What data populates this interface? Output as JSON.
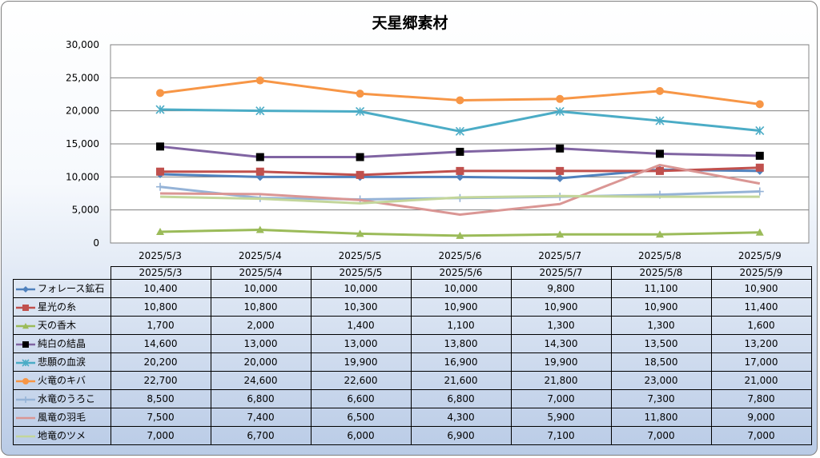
{
  "chart_data": {
    "type": "line",
    "title": "天星郷素材",
    "categories": [
      "2025/5/3",
      "2025/5/4",
      "2025/5/5",
      "2025/5/6",
      "2025/5/7",
      "2025/5/8",
      "2025/5/9"
    ],
    "ylim": [
      0,
      30000
    ],
    "yticks": [
      "0",
      "5,000",
      "10,000",
      "15,000",
      "20,000",
      "25,000",
      "30,000"
    ],
    "grid": true,
    "legend": "data-table",
    "series": [
      {
        "name": "フォレース鉱石",
        "color": "#4f81bd",
        "marker": "diamond",
        "values": [
          10400,
          10000,
          10000,
          10000,
          9800,
          11100,
          10900
        ],
        "labels": [
          "10,400",
          "10,000",
          "10,000",
          "10,000",
          "9,800",
          "11,100",
          "10,900"
        ]
      },
      {
        "name": "星光の糸",
        "color": "#c0504d",
        "marker": "square",
        "values": [
          10800,
          10800,
          10300,
          10900,
          10900,
          10900,
          11400
        ],
        "labels": [
          "10,800",
          "10,800",
          "10,300",
          "10,900",
          "10,900",
          "10,900",
          "11,400"
        ]
      },
      {
        "name": "天の香木",
        "color": "#9bbb59",
        "marker": "triangle",
        "values": [
          1700,
          2000,
          1400,
          1100,
          1300,
          1300,
          1600
        ],
        "labels": [
          "1,700",
          "2,000",
          "1,400",
          "1,100",
          "1,300",
          "1,300",
          "1,600"
        ]
      },
      {
        "name": "純白の結晶",
        "color": "#8064a2",
        "markerColor": "#000000",
        "marker": "square",
        "values": [
          14600,
          13000,
          13000,
          13800,
          14300,
          13500,
          13200
        ],
        "labels": [
          "14,600",
          "13,000",
          "13,000",
          "13,800",
          "14,300",
          "13,500",
          "13,200"
        ]
      },
      {
        "name": "悲願の血涙",
        "color": "#4bacc6",
        "marker": "star",
        "values": [
          20200,
          20000,
          19900,
          16900,
          19900,
          18500,
          17000
        ],
        "labels": [
          "20,200",
          "20,000",
          "19,900",
          "16,900",
          "19,900",
          "18,500",
          "17,000"
        ]
      },
      {
        "name": "火竜のキバ",
        "color": "#f79646",
        "marker": "circle",
        "values": [
          22700,
          24600,
          22600,
          21600,
          21800,
          23000,
          21000
        ],
        "labels": [
          "22,700",
          "24,600",
          "22,600",
          "21,600",
          "21,800",
          "23,000",
          "21,000"
        ]
      },
      {
        "name": "水竜のうろこ",
        "color": "#95b3d7",
        "marker": "plus",
        "values": [
          8500,
          6800,
          6600,
          6800,
          7000,
          7300,
          7800
        ],
        "labels": [
          "8,500",
          "6,800",
          "6,600",
          "6,800",
          "7,000",
          "7,300",
          "7,800"
        ]
      },
      {
        "name": "風竜の羽毛",
        "color": "#da9694",
        "marker": "none",
        "values": [
          7500,
          7400,
          6500,
          4300,
          5900,
          11800,
          9000
        ],
        "labels": [
          "7,500",
          "7,400",
          "6,500",
          "4,300",
          "5,900",
          "11,800",
          "9,000"
        ]
      },
      {
        "name": "地竜のツメ",
        "color": "#c3d69b",
        "marker": "none",
        "values": [
          7000,
          6700,
          6000,
          6900,
          7100,
          7000,
          7000
        ],
        "labels": [
          "7,000",
          "6,700",
          "6,000",
          "6,900",
          "7,100",
          "7,000",
          "7,000"
        ]
      }
    ]
  }
}
